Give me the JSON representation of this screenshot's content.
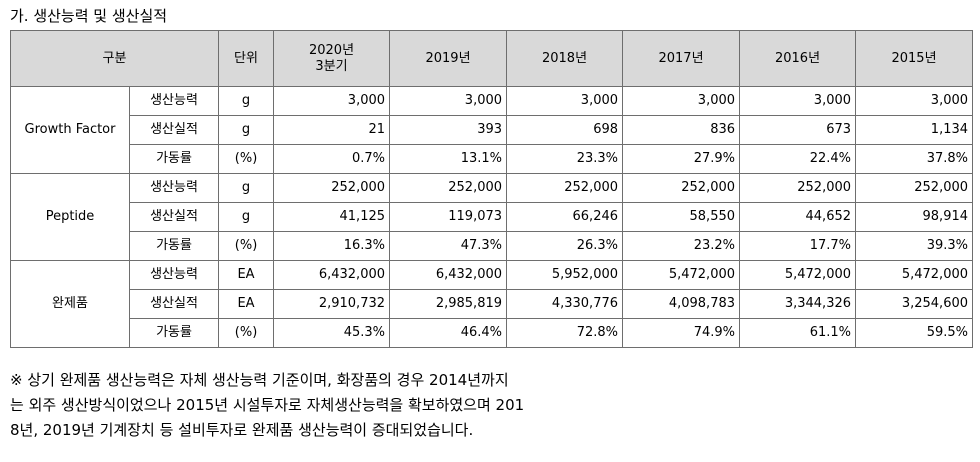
{
  "title": "가. 생산능력 및 생산실적",
  "header": {
    "category": "구분",
    "unit": "단위",
    "year_2020_l1": "2020년",
    "year_2020_l2": "3분기",
    "years": [
      "2019년",
      "2018년",
      "2017년",
      "2016년",
      "2015년"
    ]
  },
  "groups": [
    {
      "name": "Growth Factor",
      "rows": [
        {
          "item": "생산능력",
          "unit": "g",
          "values": [
            "3,000",
            "3,000",
            "3,000",
            "3,000",
            "3,000",
            "3,000"
          ]
        },
        {
          "item": "생산실적",
          "unit": "g",
          "values": [
            "21",
            "393",
            "698",
            "836",
            "673",
            "1,134"
          ]
        },
        {
          "item": "가동률",
          "unit": "(%)",
          "values": [
            "0.7%",
            "13.1%",
            "23.3%",
            "27.9%",
            "22.4%",
            "37.8%"
          ]
        }
      ]
    },
    {
      "name": "Peptide",
      "rows": [
        {
          "item": "생산능력",
          "unit": "g",
          "values": [
            "252,000",
            "252,000",
            "252,000",
            "252,000",
            "252,000",
            "252,000"
          ]
        },
        {
          "item": "생산실적",
          "unit": "g",
          "values": [
            "41,125",
            "119,073",
            "66,246",
            "58,550",
            "44,652",
            "98,914"
          ]
        },
        {
          "item": "가동률",
          "unit": "(%)",
          "values": [
            "16.3%",
            "47.3%",
            "26.3%",
            "23.2%",
            "17.7%",
            "39.3%"
          ]
        }
      ]
    },
    {
      "name": "완제품",
      "rows": [
        {
          "item": "생산능력",
          "unit": "EA",
          "values": [
            "6,432,000",
            "6,432,000",
            "5,952,000",
            "5,472,000",
            "5,472,000",
            "5,472,000"
          ]
        },
        {
          "item": "생산실적",
          "unit": "EA",
          "values": [
            "2,910,732",
            "2,985,819",
            "4,330,776",
            "4,098,783",
            "3,344,326",
            "3,254,600"
          ]
        },
        {
          "item": "가동률",
          "unit": "(%)",
          "values": [
            "45.3%",
            "46.4%",
            "72.8%",
            "74.9%",
            "61.1%",
            "59.5%"
          ]
        }
      ]
    }
  ],
  "note_lines": [
    "※ 상기 완제품 생산능력은 자체 생산능력 기준이며, 화장품의 경우 2014년까지",
    "는 외주 생산방식이었으나 2015년 시설투자로 자체생산능력을 확보하였으며 201",
    "8년, 2019년 기계장치 등 설비투자로 완제품 생산능력이 증대되었습니다."
  ]
}
